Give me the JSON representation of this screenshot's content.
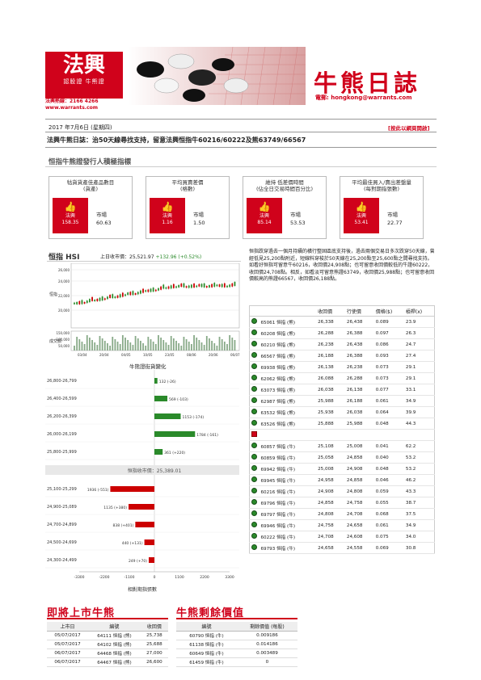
{
  "header": {
    "logo_main": "法興",
    "logo_sub": "認股證 牛熊證",
    "hotline": "法興熱線：2166 4266",
    "website": "www.warrants.com",
    "title": "牛熊日誌",
    "email": "電郵: hongkong@warrants.com",
    "date": "2017 年7月6日 (星期四)",
    "browser_link": "[按此以網頁開啟]",
    "headline": "法興牛熊日誌：治50天線尋找支持，留意法興恒指牛60216/60222及熊63749/66567"
  },
  "indicators": {
    "section_title": "恒指牛熊證發行人積極指標",
    "cards": [
      {
        "caption": "牯貨貨產佳產品數目\n(貨產)",
        "sg_label": "法興",
        "sg_value": "158.35",
        "mkt_label": "市場",
        "mkt_value": "60.63"
      },
      {
        "caption": "平均買賣差價\n(格數)",
        "sg_label": "法興",
        "sg_value": "1.16",
        "mkt_label": "市場",
        "mkt_value": "1.50"
      },
      {
        "caption": "維持   低差價時間\n(佔全日交易時間百分比)",
        "sg_label": "法興",
        "sg_value": "85.14",
        "mkt_label": "市場",
        "mkt_value": "53.53"
      },
      {
        "caption": "平均最佳買入/賣出差盤量\n(每對期指張數)",
        "sg_label": "法興",
        "sg_value": "53.41",
        "mkt_label": "市場",
        "mkt_value": "22.77"
      }
    ]
  },
  "hsi": {
    "title": "恒指 HSI",
    "close_label": "上日收市價：25,521.97",
    "change": "+132.96 (+0.52%)",
    "y_ticks": [
      "26,000",
      "24,000",
      "22,000",
      "20,000"
    ],
    "vol_ticks": [
      "150,000",
      "100,000",
      "50,000"
    ],
    "y_label": "恒指",
    "vol_label": "成交額",
    "x_ticks": [
      "03/04",
      "20/04",
      "04/05",
      "10/05",
      "23/05",
      "08/06",
      "20/06",
      "06/07"
    ]
  },
  "commentary": "恒指跌穿過去一個月持續的橫行整固區底支持後，過去兩個交易日多次跌穿50天線，曾經低見25,200點附近，短線料穿梭於50天線在25,200點至25,600點之間尋找支持。如看好恒指可留意牛60216，收回價24,908點；也可留意收回價較低的牛證60222，收回價24,708點。相反，如看淡可留意熊證63749，收回價25,988點；也可留意收回價較高的熊證66567，收回價26,188點。",
  "warrant_table": {
    "headers": [
      "",
      "",
      "收回價",
      "行使價",
      "價格($)",
      "槓桿(x)"
    ],
    "bears": [
      [
        "65061 恒指 (熊)",
        "26,338",
        "26,438",
        "0.089",
        "23.9"
      ],
      [
        "60208 恒指 (熊)",
        "26,288",
        "26,388",
        "0.097",
        "26.3"
      ],
      [
        "60210 恒指 (熊)",
        "26,238",
        "26,438",
        "0.086",
        "24.7"
      ],
      [
        "66567 恒指 (熊)",
        "26,188",
        "26,388",
        "0.093",
        "27.4"
      ],
      [
        "69938 恒指 (熊)",
        "26,138",
        "26,238",
        "0.073",
        "29.1"
      ],
      [
        "62062 恒指 (熊)",
        "26,088",
        "26,288",
        "0.073",
        "29.1"
      ],
      [
        "63073 恒指 (熊)",
        "26,038",
        "26,138",
        "0.077",
        "33.1"
      ],
      [
        "62987 恒指 (熊)",
        "25,988",
        "26,188",
        "0.061",
        "34.9"
      ],
      [
        "63532 恒指 (熊)",
        "25,938",
        "26,038",
        "0.064",
        "39.9"
      ],
      [
        "63526 恒指 (熊)",
        "25,888",
        "25,988",
        "0.048",
        "44.3"
      ]
    ],
    "bulls": [
      [
        "60857 恒指 (牛)",
        "25,108",
        "25,008",
        "0.041",
        "62.2"
      ],
      [
        "60859 恒指 (牛)",
        "25,058",
        "24,858",
        "0.040",
        "53.2"
      ],
      [
        "69942 恒指 (牛)",
        "25,008",
        "24,908",
        "0.048",
        "53.2"
      ],
      [
        "69945 恒指 (牛)",
        "24,958",
        "24,858",
        "0.046",
        "46.2"
      ],
      [
        "60216 恒指 (牛)",
        "24,908",
        "24,808",
        "0.059",
        "43.3"
      ],
      [
        "69796 恒指 (牛)",
        "24,858",
        "24,758",
        "0.055",
        "38.7"
      ],
      [
        "69797 恒指 (牛)",
        "24,808",
        "24,708",
        "0.068",
        "37.5"
      ],
      [
        "69946 恒指 (牛)",
        "24,758",
        "24,658",
        "0.061",
        "34.9"
      ],
      [
        "60222 恒指 (牛)",
        "24,708",
        "24,608",
        "0.075",
        "34.0"
      ],
      [
        "69793 恒指 (牛)",
        "24,658",
        "24,558",
        "0.069",
        "30.8"
      ]
    ]
  },
  "distribution": {
    "title": "牛熊證街貨變化",
    "close_label": "恒指收市價：25,389.01",
    "xlabel": "相對期指張數",
    "x_ticks": [
      "-3300",
      "-2200",
      "-1100",
      "0",
      "1100",
      "2200",
      "3300"
    ]
  },
  "chart_data": {
    "type": "bar",
    "title": "牛熊證街貨變化",
    "xlabel": "相對期指張數",
    "categories": [
      "26,800-26,799",
      "26,400-26,599",
      "26,200-26,399",
      "26,000-26,199",
      "25,800-25,999",
      "25,100-25,299",
      "24,900-25,089",
      "24,700-24,899",
      "24,500-24,699",
      "24,300-24,499"
    ],
    "values": [
      132,
      569,
      1153,
      1784,
      361,
      -1936,
      -1135,
      -838,
      -440,
      -249
    ],
    "labels": [
      "132 (-26)",
      "569 (-103)",
      "1153 (-174)",
      "1784 (-161)",
      "361 (+220)",
      "1936 (-551)",
      "1135 (+380)",
      "838 (+401)",
      "440 (+131)",
      "249 (+70)"
    ],
    "xlim": [
      -3300,
      3300
    ]
  },
  "upcoming": {
    "title": "即將上市牛熊",
    "headers": [
      "上市日",
      "編號",
      "收回價"
    ],
    "rows": [
      [
        "05/07/2017",
        "64111 恒指 (熊)",
        "25,738"
      ],
      [
        "05/07/2017",
        "64102 恒指 (熊)",
        "25,688"
      ],
      [
        "06/07/2017",
        "64468 恒指 (熊)",
        "27,000"
      ],
      [
        "06/07/2017",
        "64467 恒指 (熊)",
        "26,600"
      ]
    ]
  },
  "residual": {
    "title": "牛熊剩餘價值",
    "headers": [
      "編號",
      "剩餘價值 (每股)"
    ],
    "rows": [
      [
        "60790 恒指 (牛)",
        "0.009186"
      ],
      [
        "61138 恒指 (牛)",
        "0.014186"
      ],
      [
        "60649 恒指 (牛)",
        "0.003489"
      ],
      [
        "61459 恒指 (牛)",
        "0"
      ]
    ]
  }
}
